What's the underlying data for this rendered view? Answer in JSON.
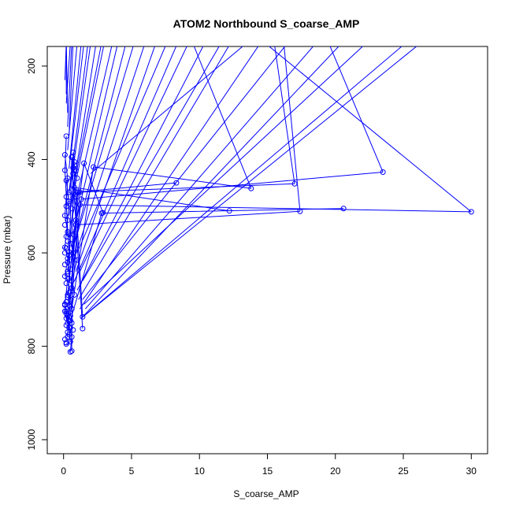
{
  "chart_data": {
    "type": "line",
    "title": "ATOM2 Northbound S_coarse_AMP",
    "xlabel": "S_coarse_AMP",
    "ylabel": "Pressure (mbar)",
    "xlim": [
      -1.2,
      31.2
    ],
    "ylim": [
      1030,
      158
    ],
    "y_reversed": true,
    "xticks": [
      0,
      5,
      10,
      15,
      20,
      25,
      30
    ],
    "yticks": [
      200,
      400,
      600,
      800,
      1000
    ],
    "grid": false,
    "legend": "none",
    "color": "#0000ff",
    "marker": "open-circle",
    "series": [
      {
        "x": [
          30.0,
          1.2,
          0.5
        ],
        "y": [
          512,
          497,
          735
        ]
      },
      {
        "x": [
          23.5,
          1.3,
          0.4
        ],
        "y": [
          427,
          485,
          712
        ]
      },
      {
        "x": [
          20.6,
          2.8,
          0.5
        ],
        "y": [
          505,
          515,
          745
        ]
      },
      {
        "x": [
          17.4,
          0.9,
          0.4
        ],
        "y": [
          511,
          540,
          738
        ]
      },
      {
        "x": [
          17.0,
          1.1,
          0.3
        ],
        "y": [
          452,
          470,
          690
        ]
      },
      {
        "x": [
          13.8,
          2.2,
          0.6
        ],
        "y": [
          462,
          416,
          720
        ]
      },
      {
        "x": [
          12.2,
          0.8,
          0.3
        ],
        "y": [
          510,
          460,
          640
        ]
      },
      {
        "x": [
          8.3,
          1.0,
          0.5
        ],
        "y": [
          450,
          470,
          700
        ]
      },
      {
        "x": [
          2.9,
          1.5,
          0.4
        ],
        "y": [
          514,
          408,
          655
        ]
      },
      {
        "x": [
          1.4,
          0.7,
          0.6
        ],
        "y": [
          737,
          385,
          810
        ]
      },
      {
        "x": [
          1.4,
          0.6,
          0.3
        ],
        "y": [
          762,
          395,
          780
        ]
      },
      {
        "x": [
          0.2,
          0.1,
          0.2,
          0.1,
          0.3
        ],
        "y": [
          350,
          423,
          480,
          520,
          555
        ]
      },
      {
        "x": [
          0.1,
          0.3,
          0.2,
          0.4,
          0.1
        ],
        "y": [
          390,
          440,
          500,
          598,
          650
        ]
      },
      {
        "x": [
          0.2,
          0.4,
          0.3,
          0.1,
          0.3
        ],
        "y": [
          445,
          490,
          530,
          588,
          612
        ]
      },
      {
        "x": [
          0.1,
          0.2,
          0.4,
          0.5,
          0.2
        ],
        "y": [
          710,
          740,
          760,
          790,
          795
        ]
      },
      {
        "x": [
          0.3,
          0.1,
          0.2,
          0.6,
          0.5
        ],
        "y": [
          655,
          712,
          725,
          780,
          812
        ]
      },
      {
        "x": [
          0.6,
          0.8,
          0.7,
          0.4,
          0.9
        ],
        "y": [
          395,
          412,
          430,
          470,
          480
        ]
      },
      {
        "x": [
          0.4,
          0.7,
          1.0,
          0.6,
          0.8
        ],
        "y": [
          560,
          600,
          615,
          660,
          690
        ]
      }
    ],
    "edge_segments": [
      {
        "x": [
          0.1,
          0.2
        ],
        "y": [
          230,
          150
        ]
      },
      {
        "x": [
          0.2,
          0.2
        ],
        "y": [
          260,
          150
        ]
      },
      {
        "x": [
          0.3,
          0.2
        ],
        "y": [
          300,
          150
        ]
      },
      {
        "x": [
          0.2,
          0.5
        ],
        "y": [
          280,
          150
        ]
      },
      {
        "x": [
          0.3,
          0.6
        ],
        "y": [
          330,
          150
        ]
      },
      {
        "x": [
          0.4,
          0.7
        ],
        "y": [
          350,
          150
        ]
      },
      {
        "x": [
          0.3,
          1.0
        ],
        "y": [
          380,
          150
        ]
      },
      {
        "x": [
          0.4,
          1.3
        ],
        "y": [
          420,
          150
        ]
      },
      {
        "x": [
          0.5,
          1.5
        ],
        "y": [
          400,
          150
        ]
      },
      {
        "x": [
          0.4,
          1.8
        ],
        "y": [
          470,
          150
        ]
      },
      {
        "x": [
          0.6,
          2.0
        ],
        "y": [
          440,
          150
        ]
      },
      {
        "x": [
          0.5,
          2.4
        ],
        "y": [
          500,
          150
        ]
      },
      {
        "x": [
          0.6,
          2.8
        ],
        "y": [
          480,
          150
        ]
      },
      {
        "x": [
          0.4,
          3.0
        ],
        "y": [
          520,
          150
        ]
      },
      {
        "x": [
          0.5,
          3.6
        ],
        "y": [
          540,
          150
        ]
      },
      {
        "x": [
          0.7,
          4.0
        ],
        "y": [
          560,
          150
        ]
      },
      {
        "x": [
          0.6,
          4.6
        ],
        "y": [
          600,
          150
        ]
      },
      {
        "x": [
          0.8,
          5.2
        ],
        "y": [
          580,
          150
        ]
      },
      {
        "x": [
          0.7,
          6.0
        ],
        "y": [
          620,
          150
        ]
      },
      {
        "x": [
          0.9,
          6.8
        ],
        "y": [
          640,
          150
        ]
      },
      {
        "x": [
          1.0,
          7.6
        ],
        "y": [
          600,
          150
        ]
      },
      {
        "x": [
          0.8,
          8.4
        ],
        "y": [
          660,
          150
        ]
      },
      {
        "x": [
          1.2,
          9.2
        ],
        "y": [
          640,
          150
        ]
      },
      {
        "x": [
          1.0,
          10.4
        ],
        "y": [
          680,
          150
        ]
      },
      {
        "x": [
          1.4,
          11.6
        ],
        "y": [
          660,
          150
        ]
      },
      {
        "x": [
          1.1,
          12.3
        ],
        "y": [
          700,
          150
        ]
      },
      {
        "x": [
          2.0,
          13.5
        ],
        "y": [
          430,
          150
        ]
      },
      {
        "x": [
          1.2,
          14.5
        ],
        "y": [
          720,
          150
        ]
      },
      {
        "x": [
          1.4,
          16.5
        ],
        "y": [
          700,
          150
        ]
      },
      {
        "x": [
          1.6,
          18.6
        ],
        "y": [
          720,
          150
        ]
      },
      {
        "x": [
          1.3,
          20.5
        ],
        "y": [
          740,
          150
        ]
      },
      {
        "x": [
          1.5,
          22.3
        ],
        "y": [
          710,
          150
        ]
      },
      {
        "x": [
          1.3,
          25.2
        ],
        "y": [
          740,
          150
        ]
      },
      {
        "x": [
          1.5,
          26.3
        ],
        "y": [
          735,
          150
        ]
      },
      {
        "x": [
          13.8,
          9.5
        ],
        "y": [
          462,
          150
        ]
      },
      {
        "x": [
          17.0,
          15.5
        ],
        "y": [
          452,
          150
        ]
      },
      {
        "x": [
          17.4,
          16.2
        ],
        "y": [
          511,
          150
        ]
      },
      {
        "x": [
          23.5,
          19.5
        ],
        "y": [
          427,
          150
        ]
      },
      {
        "x": [
          30.0,
          14.8
        ],
        "y": [
          512,
          150
        ]
      }
    ],
    "scatter_points": {
      "x": [
        0.1,
        0.2,
        0.3,
        0.2,
        0.4,
        0.1,
        0.5,
        0.3,
        0.2,
        0.6,
        0.4,
        0.3,
        0.2,
        0.5,
        0.1,
        0.3,
        0.4,
        0.2,
        0.7,
        0.6,
        0.3,
        0.1,
        0.2,
        0.4,
        0.5,
        0.3,
        0.2,
        0.6,
        0.1,
        0.3,
        0.8,
        0.7,
        0.9,
        1.0,
        1.2,
        0.9,
        0.7,
        0.5,
        0.4,
        0.6
      ],
      "y": [
        540,
        565,
        575,
        590,
        605,
        625,
        635,
        645,
        665,
        675,
        685,
        695,
        705,
        715,
        725,
        735,
        745,
        755,
        765,
        750,
        770,
        785,
        792,
        775,
        760,
        750,
        730,
        720,
        600,
        620,
        405,
        418,
        424,
        440,
        470,
        530,
        560,
        580,
        495,
        505
      ]
    }
  }
}
